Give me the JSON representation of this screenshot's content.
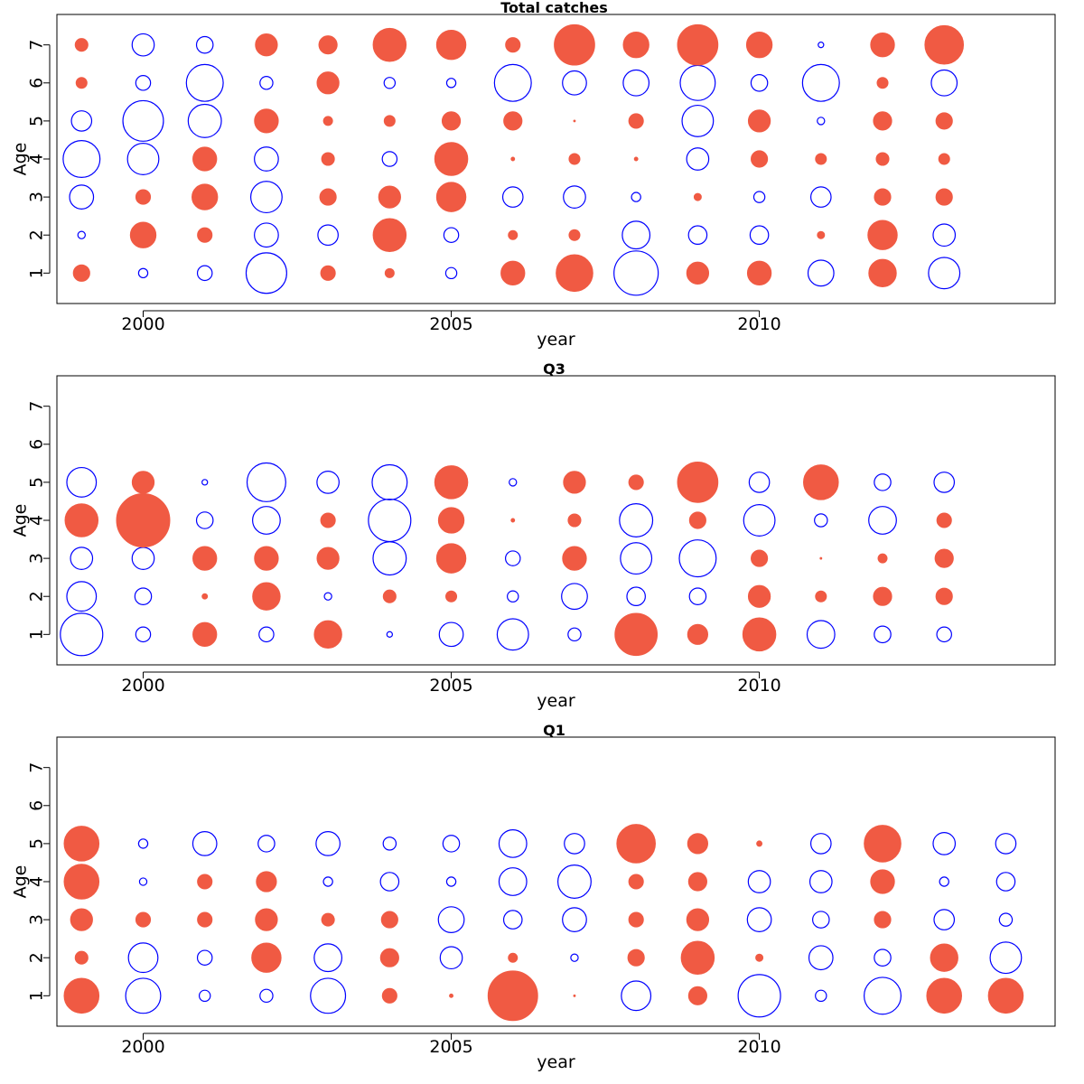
{
  "figure": {
    "kind": "bubble residual plots"
  },
  "colors": {
    "positive": "#f05a43",
    "negative": "#0000ff",
    "frame": "#000000",
    "background": "#ffffff"
  },
  "chart_data": [
    {
      "type": "scatter",
      "title": "Total catches",
      "xlabel": "year",
      "ylabel": "Age",
      "xlim": [
        1998.6,
        2014.8
      ],
      "ylim": [
        0.2,
        7.8
      ],
      "x_ticks": [
        2000,
        2005,
        2010
      ],
      "y_ticks": [
        1,
        2,
        3,
        4,
        5,
        6,
        7
      ],
      "series": [],
      "years": [
        1999,
        2000,
        2001,
        2002,
        2003,
        2004,
        2005,
        2006,
        2007,
        2008,
        2009,
        2010,
        2011,
        2012,
        2013
      ],
      "ages": [
        1,
        2,
        3,
        4,
        5,
        6,
        7
      ],
      "encoding": "bubble radius proportional to |residual|; positive = filled, negative = open",
      "residuals": [
        [
          0.9,
          -0.5,
          -0.8,
          -2.2,
          0.8,
          0.5,
          -0.6,
          1.3,
          2.0,
          -2.4,
          1.2,
          1.3,
          -1.4,
          1.5,
          -1.7
        ],
        [
          -0.4,
          1.4,
          0.8,
          -1.3,
          -1.1,
          1.8,
          -0.8,
          0.5,
          0.6,
          -1.5,
          -1.0,
          -1.0,
          0.4,
          1.6,
          -1.2
        ],
        [
          -1.3,
          0.8,
          1.4,
          -1.7,
          0.9,
          1.2,
          1.6,
          -1.1,
          -1.2,
          -0.5,
          0.4,
          -0.6,
          -1.1,
          0.9,
          0.9
        ],
        [
          -2.0,
          -1.7,
          1.3,
          -1.3,
          0.7,
          -0.8,
          1.8,
          0.2,
          0.6,
          0.2,
          -1.2,
          0.9,
          0.6,
          0.7,
          0.6
        ],
        [
          -1.1,
          -2.2,
          -1.8,
          1.3,
          0.5,
          0.6,
          1.0,
          1.0,
          0.1,
          0.8,
          -1.7,
          1.2,
          -0.4,
          1.0,
          0.9
        ],
        [
          0.6,
          -0.8,
          -2.0,
          -0.7,
          1.2,
          -0.6,
          -0.5,
          -2.0,
          -1.3,
          -1.4,
          -1.9,
          -0.9,
          -2.0,
          0.6,
          -1.4
        ],
        [
          0.7,
          -1.2,
          -0.9,
          1.2,
          1.0,
          1.8,
          1.6,
          0.8,
          2.2,
          1.4,
          2.2,
          1.4,
          -0.3,
          1.3,
          2.1
        ]
      ]
    },
    {
      "type": "scatter",
      "title": "Q3",
      "xlabel": "year",
      "ylabel": "Age",
      "xlim": [
        1998.6,
        2014.8
      ],
      "ylim": [
        0.2,
        7.8
      ],
      "x_ticks": [
        2000,
        2005,
        2010
      ],
      "y_ticks": [
        1,
        2,
        3,
        4,
        5,
        6,
        7
      ],
      "series": [],
      "years": [
        1999,
        2000,
        2001,
        2002,
        2003,
        2004,
        2005,
        2006,
        2007,
        2008,
        2009,
        2010,
        2011,
        2012,
        2013
      ],
      "ages": [
        1,
        2,
        3,
        4,
        5
      ],
      "encoding": "bubble radius proportional to |residual|; positive = filled, negative = open",
      "residuals": [
        [
          -2.3,
          -0.8,
          1.3,
          -0.8,
          1.5,
          -0.3,
          -1.3,
          -1.7,
          -0.7,
          2.3,
          1.1,
          1.8,
          -1.5,
          -0.9,
          -0.8
        ],
        [
          -1.6,
          -0.9,
          0.3,
          1.5,
          -0.4,
          0.7,
          0.6,
          -0.6,
          -1.4,
          -1.0,
          -0.9,
          1.2,
          0.6,
          1.0,
          0.9
        ],
        [
          -1.2,
          -1.2,
          1.3,
          1.3,
          1.2,
          -1.8,
          1.6,
          -0.8,
          1.3,
          -1.7,
          -2.0,
          0.9,
          0.1,
          0.5,
          1.0
        ],
        [
          1.8,
          2.9,
          -0.9,
          -1.5,
          0.8,
          -2.3,
          1.4,
          0.2,
          0.7,
          -1.8,
          0.9,
          -1.7,
          -0.7,
          -1.5,
          0.8
        ],
        [
          -1.6,
          1.2,
          -0.3,
          -2.1,
          -1.2,
          -1.9,
          1.8,
          -0.4,
          1.2,
          0.8,
          2.2,
          -1.1,
          1.9,
          -0.9,
          -1.1
        ]
      ]
    },
    {
      "type": "scatter",
      "title": "Q1",
      "xlabel": "year",
      "ylabel": "Age",
      "xlim": [
        1998.6,
        2014.8
      ],
      "ylim": [
        0.2,
        7.8
      ],
      "x_ticks": [
        2000,
        2005,
        2010
      ],
      "y_ticks": [
        1,
        2,
        3,
        4,
        5,
        6,
        7
      ],
      "series": [],
      "years": [
        1999,
        2000,
        2001,
        2002,
        2003,
        2004,
        2005,
        2006,
        2007,
        2008,
        2009,
        2010,
        2011,
        2012,
        2013,
        2014
      ],
      "ages": [
        1,
        2,
        3,
        4,
        5
      ],
      "encoding": "bubble radius proportional to |residual|; positive = filled, negative = open",
      "residuals": [
        [
          1.9,
          -1.9,
          -0.6,
          -0.7,
          -1.9,
          0.8,
          0.2,
          2.7,
          0.1,
          -1.6,
          1.0,
          -2.3,
          -0.6,
          -2.0,
          1.9,
          1.9
        ],
        [
          0.7,
          -1.6,
          -0.8,
          1.6,
          -1.5,
          1.0,
          -1.2,
          0.5,
          -0.4,
          0.9,
          1.8,
          0.4,
          -1.3,
          -0.9,
          1.5,
          -1.7
        ],
        [
          1.2,
          0.8,
          0.8,
          1.2,
          0.7,
          0.9,
          -1.4,
          -1.0,
          -1.3,
          0.8,
          1.2,
          -1.3,
          -0.9,
          0.9,
          -1.1,
          -0.7
        ],
        [
          1.9,
          -0.4,
          0.8,
          1.1,
          -0.5,
          -1.0,
          -0.5,
          -1.5,
          -1.8,
          0.8,
          1.0,
          -1.2,
          -1.2,
          1.3,
          -0.5,
          -1.0
        ],
        [
          1.9,
          -0.5,
          -1.3,
          -0.9,
          -1.3,
          -0.7,
          -0.9,
          -1.5,
          -1.1,
          2.1,
          1.1,
          0.3,
          -1.1,
          2.0,
          -1.2,
          -1.1
        ]
      ]
    }
  ]
}
